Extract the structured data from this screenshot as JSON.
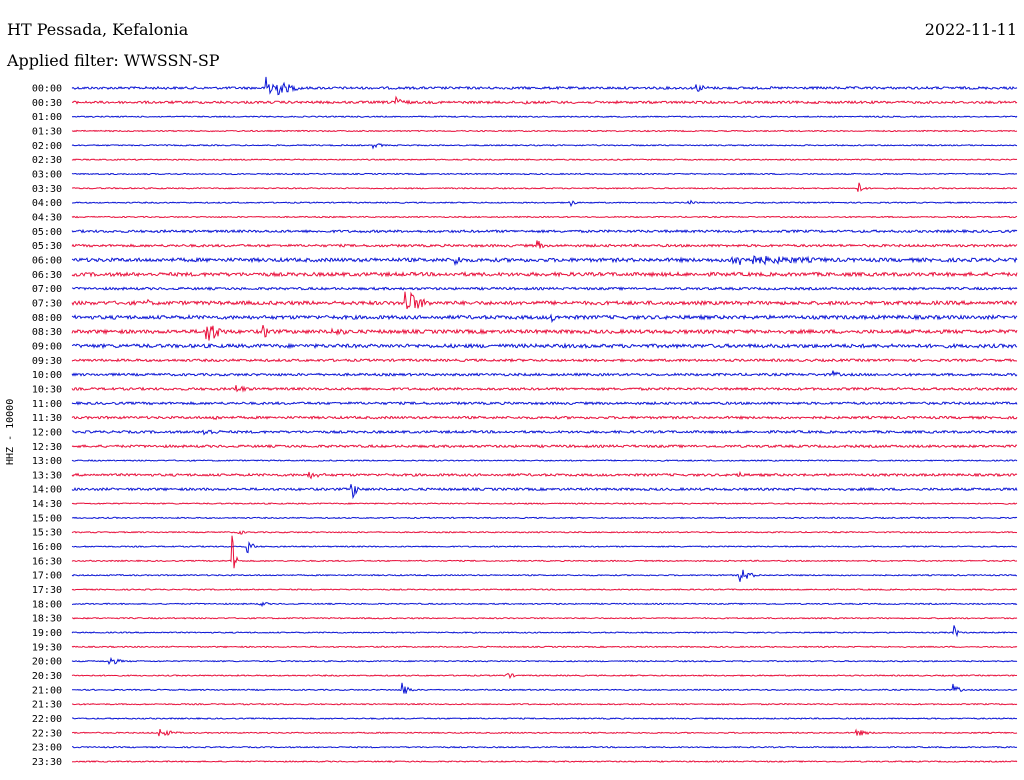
{
  "header": {
    "station": "HT Pessada, Kefalonia",
    "date": "2022-11-11",
    "filter": "Applied filter: WWSSN-SP"
  },
  "channel_label": "HHZ - 10000",
  "colors": {
    "even_trace": "#0a14d4",
    "odd_trace": "#e8103c"
  },
  "chart_data": {
    "type": "line",
    "title": "HT Pessada, Kefalonia",
    "ylabel": "HHZ - 10000",
    "row_labels": [
      "00:00",
      "00:30",
      "01:00",
      "01:30",
      "02:00",
      "02:30",
      "03:00",
      "03:30",
      "04:00",
      "04:30",
      "05:00",
      "05:30",
      "06:00",
      "06:30",
      "07:00",
      "07:30",
      "08:00",
      "08:30",
      "09:00",
      "09:30",
      "10:00",
      "10:30",
      "11:00",
      "11:30",
      "12:00",
      "12:30",
      "13:00",
      "13:30",
      "14:00",
      "14:30",
      "15:00",
      "15:30",
      "16:00",
      "16:30",
      "17:00",
      "17:30",
      "18:00",
      "18:30",
      "19:00",
      "19:30",
      "20:00",
      "20:30",
      "21:00",
      "21:30",
      "22:00",
      "22:30",
      "23:00",
      "23:30"
    ],
    "row_minutes": 30,
    "noise_level": [
      2,
      2,
      1,
      1,
      1,
      1,
      1,
      1,
      1,
      1,
      2,
      2,
      3,
      3,
      2,
      3,
      3,
      3,
      3,
      2,
      2,
      2,
      2,
      2,
      2,
      2,
      1,
      2,
      2,
      1,
      1,
      1,
      1,
      1,
      1,
      1,
      1,
      1,
      1,
      1,
      1,
      1,
      1,
      1,
      1,
      1,
      1,
      1
    ],
    "events": [
      {
        "row": 0,
        "minute": 6.2,
        "amp": 15,
        "dur": 1.5
      },
      {
        "row": 0,
        "minute": 19.8,
        "amp": 5,
        "dur": 1.0
      },
      {
        "row": 1,
        "minute": 10.2,
        "amp": 7,
        "dur": 1.0
      },
      {
        "row": 1,
        "minute": 14.4,
        "amp": 3,
        "dur": 0.5
      },
      {
        "row": 4,
        "minute": 9.6,
        "amp": 3,
        "dur": 0.8
      },
      {
        "row": 7,
        "minute": 25.0,
        "amp": 6,
        "dur": 0.4
      },
      {
        "row": 8,
        "minute": 15.8,
        "amp": 5,
        "dur": 0.4
      },
      {
        "row": 8,
        "minute": 19.6,
        "amp": 4,
        "dur": 0.4
      },
      {
        "row": 11,
        "minute": 14.8,
        "amp": 6,
        "dur": 0.4
      },
      {
        "row": 12,
        "minute": 12.2,
        "amp": 7,
        "dur": 0.5
      },
      {
        "row": 12,
        "minute": 21.0,
        "amp": 6,
        "dur": 8.0
      },
      {
        "row": 15,
        "minute": 10.6,
        "amp": 16,
        "dur": 1.2
      },
      {
        "row": 15,
        "minute": 2.4,
        "amp": 4,
        "dur": 0.5
      },
      {
        "row": 16,
        "minute": 15.2,
        "amp": 6,
        "dur": 0.6
      },
      {
        "row": 17,
        "minute": 4.3,
        "amp": 14,
        "dur": 1.0
      },
      {
        "row": 17,
        "minute": 6.1,
        "amp": 7,
        "dur": 0.8
      },
      {
        "row": 17,
        "minute": 8.2,
        "amp": 4,
        "dur": 3.0
      },
      {
        "row": 20,
        "minute": 24.2,
        "amp": 4,
        "dur": 0.6
      },
      {
        "row": 21,
        "minute": 5.2,
        "amp": 5,
        "dur": 1.0
      },
      {
        "row": 23,
        "minute": 4.5,
        "amp": 3,
        "dur": 1.0
      },
      {
        "row": 24,
        "minute": 4.2,
        "amp": 4,
        "dur": 1.5
      },
      {
        "row": 27,
        "minute": 7.5,
        "amp": 4,
        "dur": 1.5
      },
      {
        "row": 27,
        "minute": 21.1,
        "amp": 5,
        "dur": 0.5
      },
      {
        "row": 28,
        "minute": 8.9,
        "amp": 10,
        "dur": 0.5
      },
      {
        "row": 31,
        "minute": 5.3,
        "amp": 4,
        "dur": 0.4
      },
      {
        "row": 32,
        "minute": 5.6,
        "amp": 8,
        "dur": 0.4
      },
      {
        "row": 33,
        "minute": 5.1,
        "amp": 40,
        "dur": 0.2
      },
      {
        "row": 34,
        "minute": 21.2,
        "amp": 9,
        "dur": 0.8
      },
      {
        "row": 36,
        "minute": 6.0,
        "amp": 3,
        "dur": 0.6
      },
      {
        "row": 38,
        "minute": 28.0,
        "amp": 8,
        "dur": 0.3
      },
      {
        "row": 40,
        "minute": 1.2,
        "amp": 5,
        "dur": 0.8
      },
      {
        "row": 41,
        "minute": 13.8,
        "amp": 4,
        "dur": 0.6
      },
      {
        "row": 42,
        "minute": 10.5,
        "amp": 9,
        "dur": 0.5
      },
      {
        "row": 42,
        "minute": 28.0,
        "amp": 6,
        "dur": 0.5
      },
      {
        "row": 45,
        "minute": 2.8,
        "amp": 5,
        "dur": 1.0
      },
      {
        "row": 45,
        "minute": 24.9,
        "amp": 4,
        "dur": 1.0
      }
    ]
  }
}
